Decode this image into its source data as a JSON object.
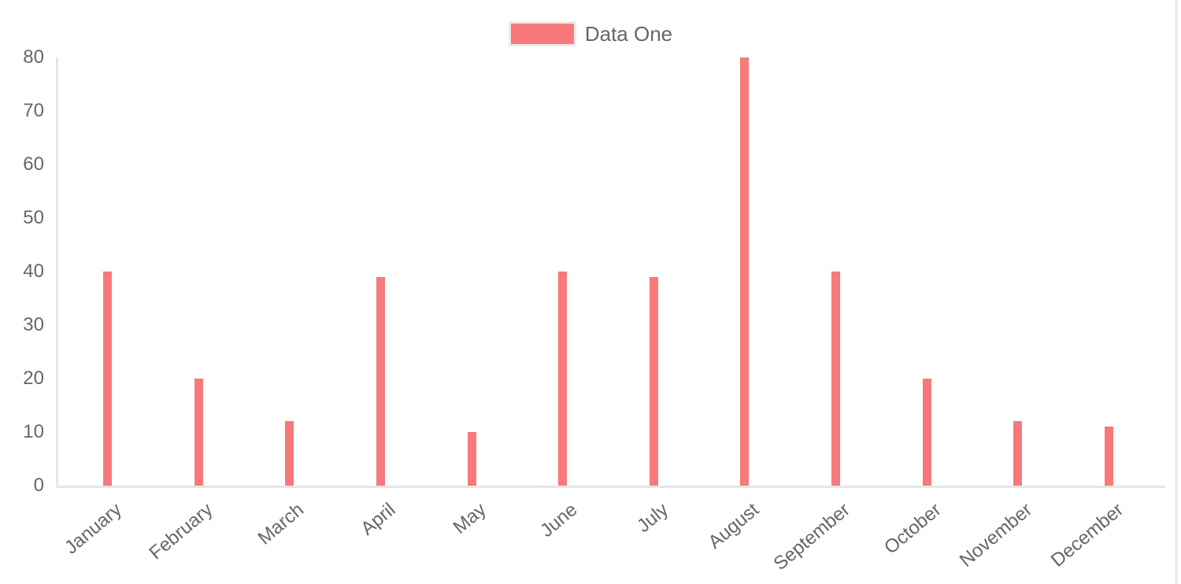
{
  "chart_data": {
    "type": "bar",
    "categories": [
      "January",
      "February",
      "March",
      "April",
      "May",
      "June",
      "July",
      "August",
      "September",
      "October",
      "November",
      "December"
    ],
    "series": [
      {
        "name": "Data One",
        "color": "#f87979",
        "values": [
          40,
          20,
          12,
          39,
          10,
          40,
          39,
          80,
          40,
          20,
          12,
          11
        ]
      }
    ],
    "title": "",
    "xlabel": "",
    "ylabel": "",
    "ylim": [
      0,
      80
    ],
    "y_ticks": [
      0,
      10,
      20,
      30,
      40,
      50,
      60,
      70,
      80
    ],
    "grid": "off",
    "legend_position": "top-center",
    "x_tick_rotation_deg": -40
  },
  "colors": {
    "bar": "#f87979",
    "axis_line": "#e6e6e6",
    "tick_text": "#666666",
    "legend_border": "#ebebeb",
    "right_edge_strip": "#ececec",
    "background": "#ffffff"
  }
}
